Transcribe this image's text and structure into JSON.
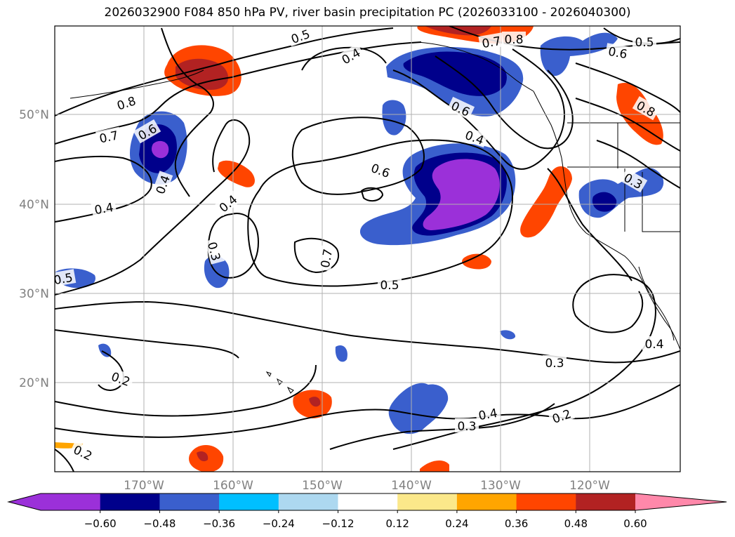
{
  "title": "2026032900 F084 850 hPa PV, river basin precipitation PC (2026033100 - 2026040300)",
  "map": {
    "lon_labels": [
      "170°W",
      "160°W",
      "150°W",
      "140°W",
      "130°W",
      "120°W"
    ],
    "lat_labels": [
      "50°N",
      "40°N",
      "30°N",
      "20°N"
    ],
    "contour_labels": [
      {
        "text": "0.8"
      },
      {
        "text": "0.7"
      },
      {
        "text": "0.6"
      },
      {
        "text": "0.5"
      },
      {
        "text": "0.4"
      },
      {
        "text": "0.3"
      },
      {
        "text": "0.4"
      },
      {
        "text": "0.6"
      },
      {
        "text": "0.7"
      },
      {
        "text": "0.5"
      },
      {
        "text": "0.3"
      },
      {
        "text": "0.4"
      },
      {
        "text": "0.2"
      },
      {
        "text": "0.3"
      },
      {
        "text": "0.2"
      },
      {
        "text": "0.2"
      },
      {
        "text": "0.4"
      },
      {
        "text": "0.6"
      },
      {
        "text": "0.8"
      },
      {
        "text": "0.7"
      },
      {
        "text": "0.6"
      },
      {
        "text": "0.5"
      },
      {
        "text": "0.8"
      },
      {
        "text": "0.4"
      },
      {
        "text": "0.3"
      },
      {
        "text": "0.4"
      },
      {
        "text": "0.4"
      },
      {
        "text": "0.5"
      }
    ]
  },
  "colorbar": {
    "colors": [
      "#9b30d9",
      "#00008b",
      "#3a5fcd",
      "#00bfff",
      "#add8f0",
      "#ffffff",
      "#fbe88a",
      "#ffa500",
      "#ff4500",
      "#b22222",
      "#ff88aa"
    ],
    "tick_labels": [
      "−0.60",
      "−0.48",
      "−0.36",
      "−0.24",
      "−0.12",
      "0.12",
      "0.24",
      "0.36",
      "0.48",
      "0.60"
    ]
  }
}
